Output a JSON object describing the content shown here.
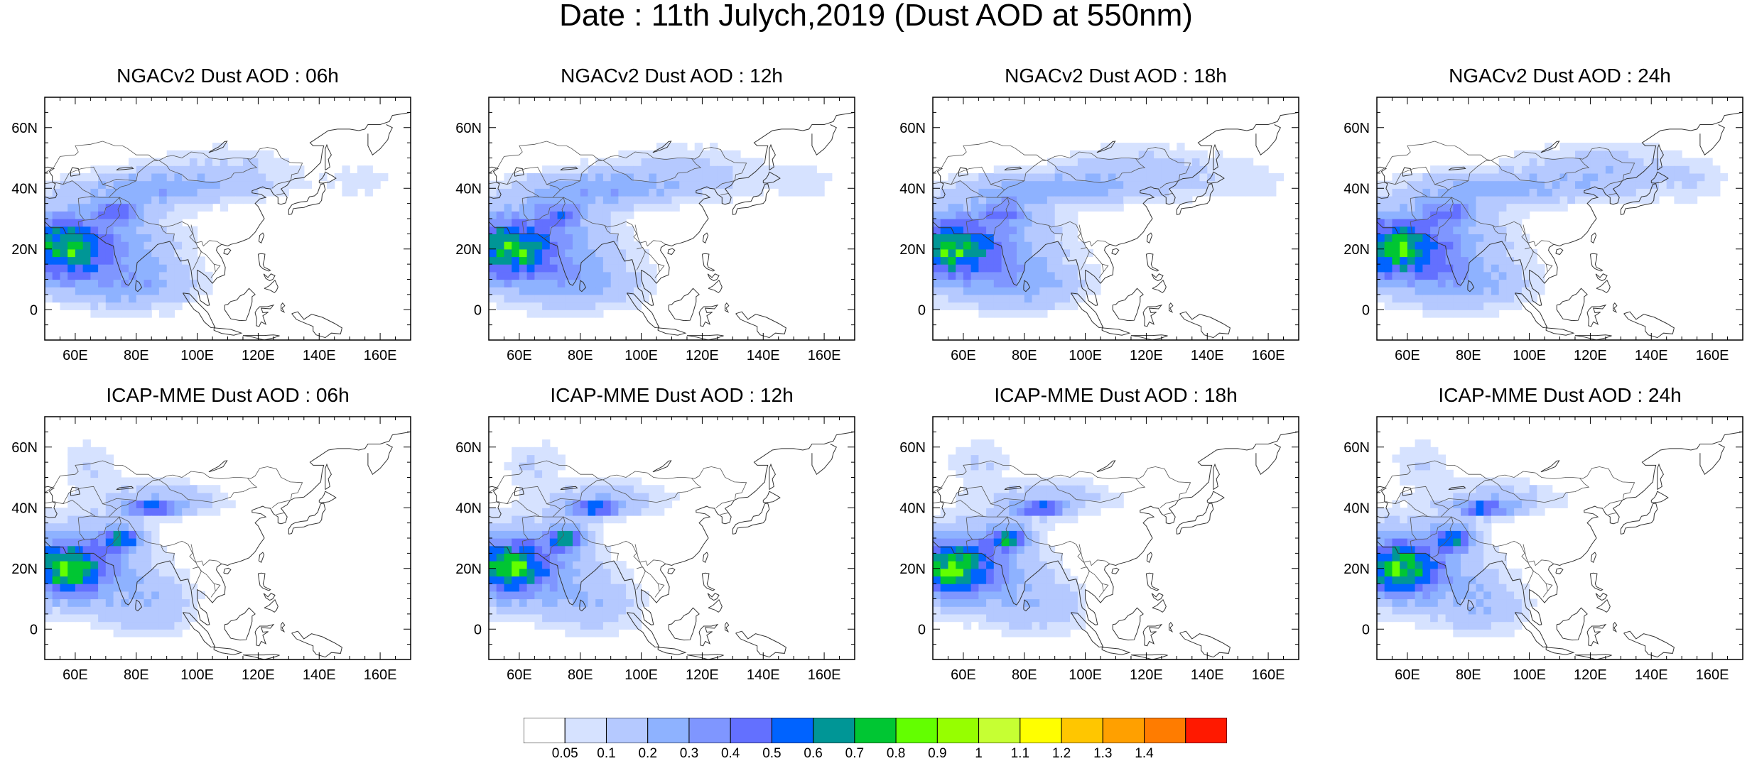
{
  "title": "Date : 11th Julych,2019 (Dust AOD at 550nm)",
  "map": {
    "lon_range": [
      50,
      170
    ],
    "lat_range": [
      -10,
      70
    ],
    "lon_ticks": [
      "60E",
      "80E",
      "100E",
      "120E",
      "140E",
      "160E"
    ],
    "lat_ticks": [
      "60N",
      "40N",
      "20N",
      "0"
    ]
  },
  "panels": [
    {
      "title": "NGACv2 Dust AOD : 06h",
      "model": "NGACv2",
      "hour": 6
    },
    {
      "title": "NGACv2 Dust AOD : 12h",
      "model": "NGACv2",
      "hour": 12
    },
    {
      "title": "NGACv2 Dust AOD : 18h",
      "model": "NGACv2",
      "hour": 18
    },
    {
      "title": "NGACv2 Dust AOD : 24h",
      "model": "NGACv2",
      "hour": 24
    },
    {
      "title": "ICAP-MME Dust AOD : 06h",
      "model": "ICAP-MME",
      "hour": 6
    },
    {
      "title": "ICAP-MME Dust AOD : 12h",
      "model": "ICAP-MME",
      "hour": 12
    },
    {
      "title": "ICAP-MME Dust AOD : 18h",
      "model": "ICAP-MME",
      "hour": 18
    },
    {
      "title": "ICAP-MME Dust AOD : 24h",
      "model": "ICAP-MME",
      "hour": 24
    }
  ],
  "colorbar": {
    "levels": [
      "0.05",
      "0.1",
      "0.2",
      "0.3",
      "0.4",
      "0.5",
      "0.6",
      "0.7",
      "0.8",
      "0.9",
      "1",
      "1.1",
      "1.2",
      "1.3",
      "1.4"
    ],
    "colors": [
      "#ffffff",
      "#d6e2ff",
      "#b5c9ff",
      "#8eb2ff",
      "#7f96ff",
      "#6370ff",
      "#0063ff",
      "#009696",
      "#00c633",
      "#63ff00",
      "#96ff00",
      "#c6ff33",
      "#ffff00",
      "#ffc600",
      "#ffa000",
      "#ff7c00",
      "#ff1900"
    ]
  }
}
